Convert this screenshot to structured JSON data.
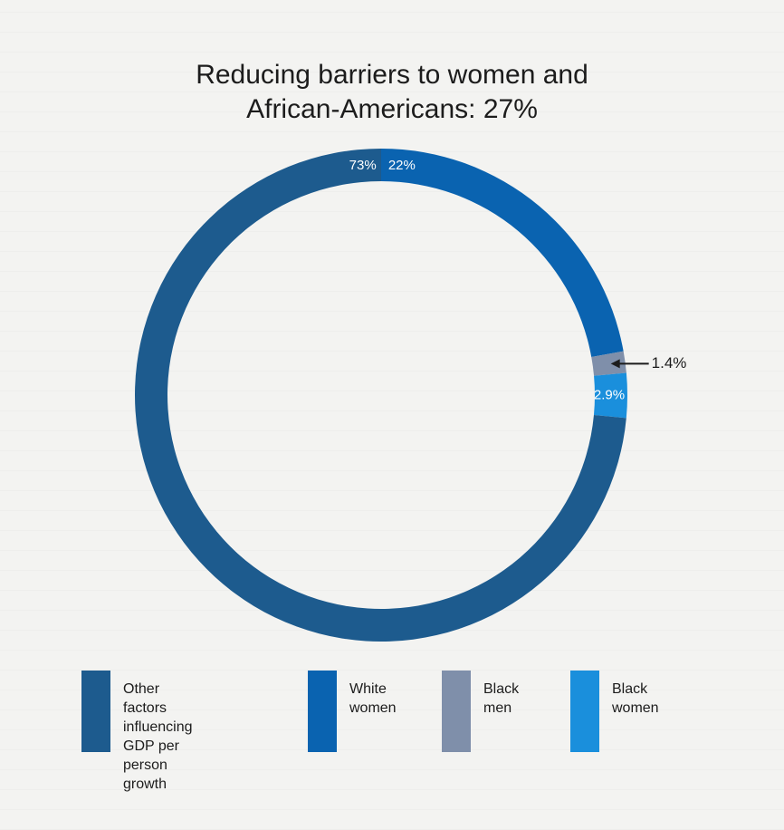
{
  "chart_data": {
    "type": "pie",
    "title": "Reducing barriers to women and African-Americans: 27%",
    "title_lines": [
      "Reducing barriers to women and",
      "African-Americans: 27%"
    ],
    "categories": [
      "Other factors influencing GDP per person growth",
      "White women",
      "Black men",
      "Black women"
    ],
    "values": [
      73,
      22,
      1.4,
      2.9
    ],
    "value_labels": [
      "73%",
      "22%",
      "1.4%",
      "2.9%"
    ],
    "colors": [
      "#1d5b8e",
      "#0a63b0",
      "#7f8faa",
      "#1a8fdc"
    ],
    "legend": [
      {
        "label": "Other factors\ninfluencing GDP per\nperson growth",
        "color": "#1d5b8e"
      },
      {
        "label": "White\nwomen",
        "color": "#0a63b0"
      },
      {
        "label": "Black\nmen",
        "color": "#7f8faa"
      },
      {
        "label": "Black\nwomen",
        "color": "#1a8fdc"
      }
    ],
    "legend_placement": "bottom",
    "donut": true
  }
}
